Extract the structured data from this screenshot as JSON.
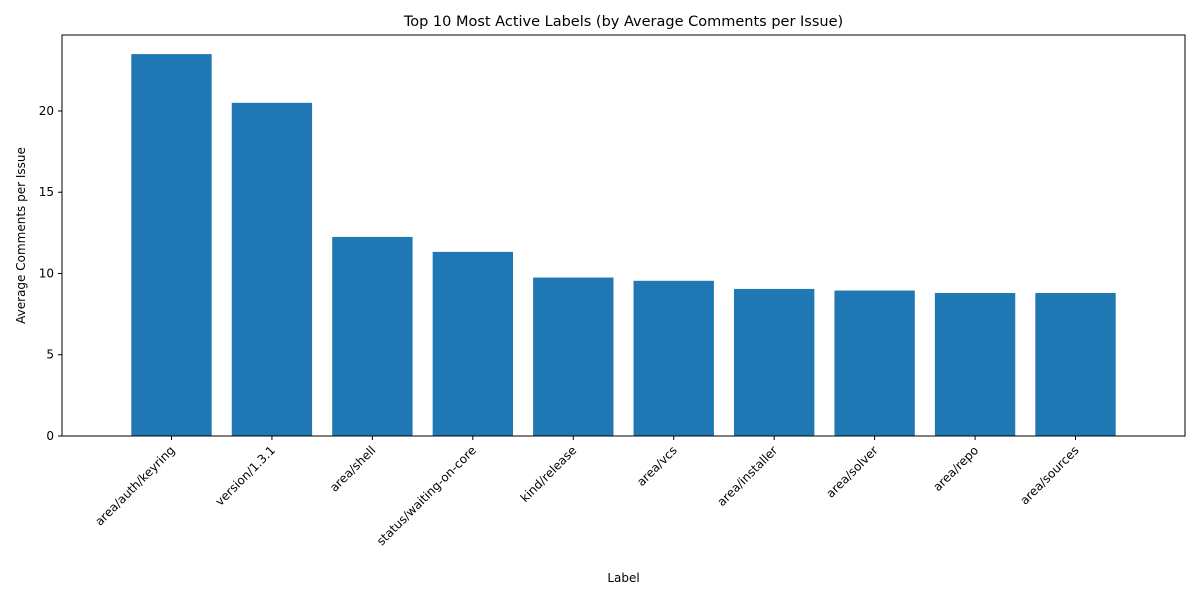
{
  "chart_data": {
    "type": "bar",
    "title": "Top 10 Most Active Labels (by Average Comments per Issue)",
    "xlabel": "Label",
    "ylabel": "Average Comments per Issue",
    "categories": [
      "area/auth/keyring",
      "version/1.3.1",
      "area/shell",
      "status/waiting-on-core",
      "kind/release",
      "area/vcs",
      "area/installer",
      "area/solver",
      "area/repo",
      "area/sources"
    ],
    "values": [
      23.5,
      20.5,
      12.25,
      11.33,
      9.75,
      9.55,
      9.05,
      8.95,
      8.8,
      8.8
    ],
    "ylim": [
      0,
      24.675
    ],
    "yticks": [
      0,
      5,
      10,
      15,
      20
    ],
    "grid": false,
    "legend": "none",
    "bar_color": "#1f77b4"
  }
}
